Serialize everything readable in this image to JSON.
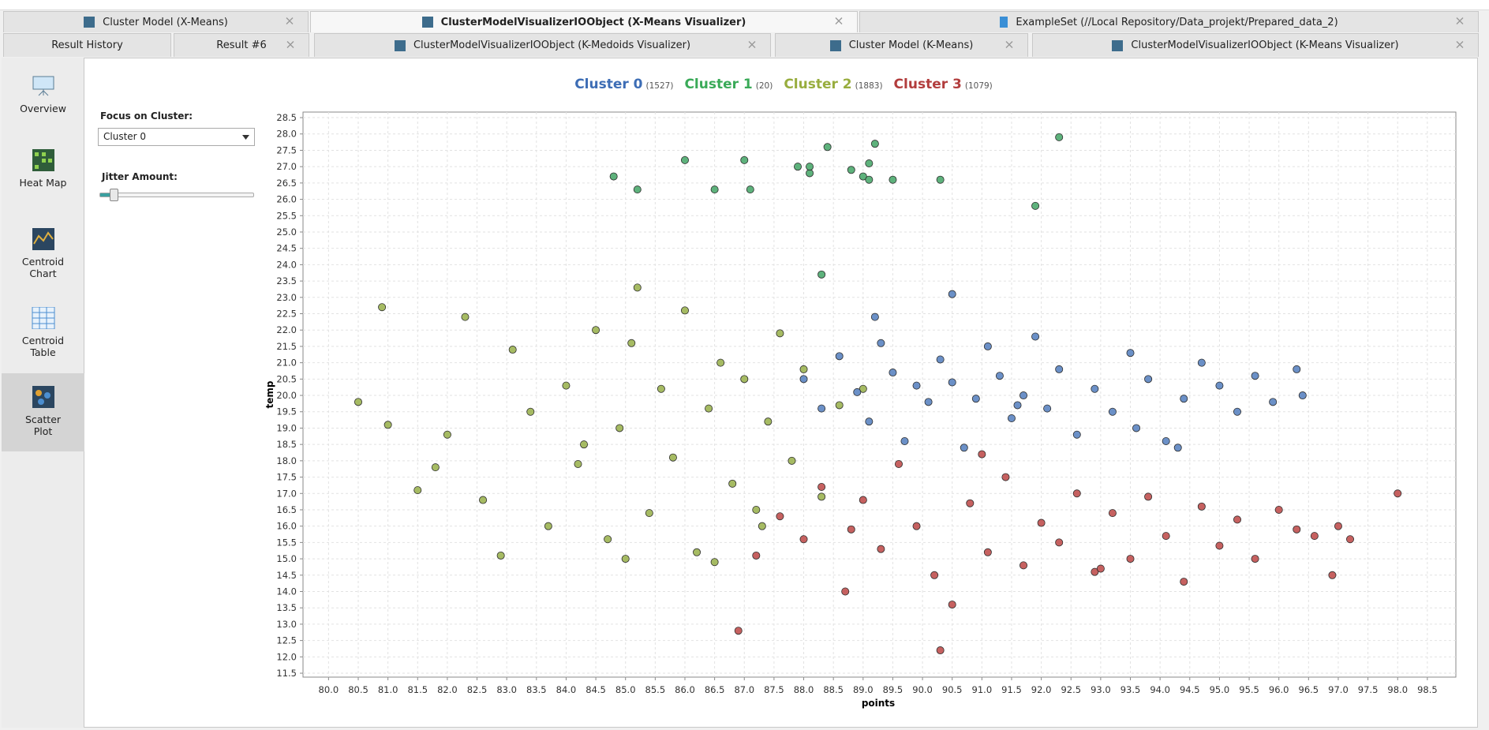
{
  "tabs_row1": [
    "Cluster Model (X-Means)",
    "ClusterModelVisualizerIOObject (X-Means Visualizer)",
    "ExampleSet (//Local Repository/Data_projekt/Prepared_data_2)"
  ],
  "tabs_row2": [
    "Result History",
    "Result #6",
    "ClusterModelVisualizerIOObject (K-Medoids Visualizer)",
    "Cluster Model (K-Means)",
    "ClusterModelVisualizerIOObject (K-Means Visualizer)"
  ],
  "sidebar": [
    "Overview",
    "Heat Map",
    "Centroid Chart",
    "Centroid Table",
    "Scatter Plot"
  ],
  "controls": {
    "focus_label": "Focus on Cluster:",
    "focus_value": "Cluster 0",
    "jitter_label": "Jitter Amount:"
  },
  "chart_data": {
    "type": "scatter",
    "x_label": "points",
    "y_label": "temp",
    "grid": true,
    "xlim": [
      79.57,
      98.98
    ],
    "ylim": [
      11.38,
      28.67
    ],
    "xticks": [
      {
        "value": 80,
        "label": "80.0"
      },
      {
        "value": 80.5,
        "label": "80.5"
      },
      {
        "value": 81,
        "label": "81.0"
      },
      {
        "value": 81.5,
        "label": "81.5"
      },
      {
        "value": 82,
        "label": "82.0"
      },
      {
        "value": 82.5,
        "label": "82.5"
      },
      {
        "value": 83,
        "label": "83.0"
      },
      {
        "value": 83.5,
        "label": "83.5"
      },
      {
        "value": 84,
        "label": "84.0"
      },
      {
        "value": 84.5,
        "label": "84.5"
      },
      {
        "value": 85,
        "label": "85.0"
      },
      {
        "value": 85.5,
        "label": "85.5"
      },
      {
        "value": 86,
        "label": "86.0"
      },
      {
        "value": 86.5,
        "label": "86.5"
      },
      {
        "value": 87,
        "label": "87.0"
      },
      {
        "value": 87.5,
        "label": "87.5"
      },
      {
        "value": 88,
        "label": "88.0"
      },
      {
        "value": 88.5,
        "label": "88.5"
      },
      {
        "value": 89,
        "label": "89.0"
      },
      {
        "value": 89.5,
        "label": "89.5"
      },
      {
        "value": 90,
        "label": "90.0"
      },
      {
        "value": 90.5,
        "label": "90.5"
      },
      {
        "value": 91,
        "label": "91.0"
      },
      {
        "value": 91.5,
        "label": "91.5"
      },
      {
        "value": 92,
        "label": "92.0"
      },
      {
        "value": 92.5,
        "label": "92.5"
      },
      {
        "value": 93,
        "label": "93.0"
      },
      {
        "value": 93.5,
        "label": "93.5"
      },
      {
        "value": 94,
        "label": "94.0"
      },
      {
        "value": 94.5,
        "label": "94.5"
      },
      {
        "value": 95,
        "label": "95.0"
      },
      {
        "value": 95.5,
        "label": "95.5"
      },
      {
        "value": 96,
        "label": "96.0"
      },
      {
        "value": 96.5,
        "label": "96.5"
      },
      {
        "value": 97,
        "label": "97.0"
      },
      {
        "value": 97.5,
        "label": "97.5"
      },
      {
        "value": 98,
        "label": "98.0"
      },
      {
        "value": 98.5,
        "label": "98.5"
      }
    ],
    "yticks": [
      {
        "value": 11.5,
        "label": "11.5"
      },
      {
        "value": 12,
        "label": "12.0"
      },
      {
        "value": 12.5,
        "label": "12.5"
      },
      {
        "value": 13,
        "label": "13.0"
      },
      {
        "value": 13.5,
        "label": "13.5"
      },
      {
        "value": 14,
        "label": "14.0"
      },
      {
        "value": 14.5,
        "label": "14.5"
      },
      {
        "value": 15,
        "label": "15.0"
      },
      {
        "value": 15.5,
        "label": "15.5"
      },
      {
        "value": 16,
        "label": "16.0"
      },
      {
        "value": 16.5,
        "label": "16.5"
      },
      {
        "value": 17,
        "label": "17.0"
      },
      {
        "value": 17.5,
        "label": "17.5"
      },
      {
        "value": 18,
        "label": "18.0"
      },
      {
        "value": 18.5,
        "label": "18.5"
      },
      {
        "value": 19,
        "label": "19.0"
      },
      {
        "value": 19.5,
        "label": "19.5"
      },
      {
        "value": 20,
        "label": "20.0"
      },
      {
        "value": 20.5,
        "label": "20.5"
      },
      {
        "value": 21,
        "label": "21.0"
      },
      {
        "value": 21.5,
        "label": "21.5"
      },
      {
        "value": 22,
        "label": "22.0"
      },
      {
        "value": 22.5,
        "label": "22.5"
      },
      {
        "value": 23,
        "label": "23.0"
      },
      {
        "value": 23.5,
        "label": "23.5"
      },
      {
        "value": 24,
        "label": "24.0"
      },
      {
        "value": 24.5,
        "label": "24.5"
      },
      {
        "value": 25,
        "label": "25.0"
      },
      {
        "value": 25.5,
        "label": "25.5"
      },
      {
        "value": 26,
        "label": "26.0"
      },
      {
        "value": 26.5,
        "label": "26.5"
      },
      {
        "value": 27,
        "label": "27.0"
      },
      {
        "value": 27.5,
        "label": "27.5"
      },
      {
        "value": 28,
        "label": "28.0"
      },
      {
        "value": 28.5,
        "label": "28.5"
      }
    ],
    "series": [
      {
        "name": "Cluster 0",
        "count_label": "(1527)",
        "color": "#5b84c1",
        "legend_color": "#3d6db5",
        "x": [
          88.0,
          88.3,
          88.6,
          88.9,
          89.1,
          89.3,
          89.5,
          89.7,
          89.9,
          90.1,
          90.3,
          90.5,
          90.7,
          90.9,
          91.1,
          91.3,
          91.5,
          91.7,
          91.9,
          92.1,
          92.3,
          92.6,
          92.9,
          93.2,
          93.5,
          93.8,
          94.1,
          94.4,
          94.7,
          95.0,
          95.3,
          95.6,
          95.9,
          96.3,
          96.4,
          90.5,
          89.2,
          91.6,
          93.6,
          94.3
        ],
        "y": [
          20.5,
          19.6,
          21.2,
          20.1,
          19.2,
          21.6,
          20.7,
          18.6,
          20.3,
          19.8,
          21.1,
          20.4,
          18.4,
          19.9,
          21.5,
          20.6,
          19.3,
          20.0,
          21.8,
          19.6,
          20.8,
          18.8,
          20.2,
          19.5,
          21.3,
          20.5,
          18.6,
          19.9,
          21.0,
          20.3,
          19.5,
          20.6,
          19.8,
          20.8,
          20.0,
          23.1,
          22.4,
          19.7,
          19.0,
          18.4
        ]
      },
      {
        "name": "Cluster 1",
        "count_label": "(20)",
        "color": "#4daa6e",
        "legend_color": "#3aaa58",
        "x": [
          84.8,
          85.2,
          86.0,
          86.5,
          87.0,
          87.1,
          87.9,
          88.1,
          88.1,
          88.4,
          88.8,
          89.0,
          89.1,
          89.1,
          89.2,
          89.5,
          90.3,
          91.9,
          92.3,
          88.3
        ],
        "y": [
          26.7,
          26.3,
          27.2,
          26.3,
          27.2,
          26.3,
          27.0,
          26.8,
          27.0,
          27.6,
          26.9,
          26.7,
          27.1,
          26.6,
          27.7,
          26.6,
          26.6,
          25.8,
          27.9,
          23.7
        ]
      },
      {
        "name": "Cluster 2",
        "count_label": "(1883)",
        "color": "#9cb452",
        "legend_color": "#98ad3e",
        "x": [
          80.5,
          80.9,
          81.0,
          81.5,
          81.8,
          82.0,
          82.3,
          82.6,
          82.9,
          83.1,
          83.4,
          83.7,
          84.0,
          84.2,
          84.5,
          84.7,
          84.9,
          85.1,
          85.2,
          85.4,
          85.6,
          85.8,
          86.0,
          86.2,
          86.4,
          86.6,
          86.8,
          87.0,
          87.2,
          87.4,
          87.6,
          87.8,
          88.0,
          88.3,
          88.6,
          89.0,
          85.0,
          86.5,
          87.3,
          84.3
        ],
        "y": [
          19.8,
          22.7,
          19.1,
          17.1,
          17.8,
          18.8,
          22.4,
          16.8,
          15.1,
          21.4,
          19.5,
          16.0,
          20.3,
          17.9,
          22.0,
          15.6,
          19.0,
          21.6,
          23.3,
          16.4,
          20.2,
          18.1,
          22.6,
          15.2,
          19.6,
          21.0,
          17.3,
          20.5,
          16.5,
          19.2,
          21.9,
          18.0,
          20.8,
          16.9,
          19.7,
          20.2,
          15.0,
          14.9,
          16.0,
          18.5
        ]
      },
      {
        "name": "Cluster 3",
        "count_label": "(1079)",
        "color": "#c0504f",
        "legend_color": "#b23d3d",
        "x": [
          86.9,
          87.2,
          87.6,
          88.0,
          88.3,
          88.7,
          89.0,
          89.3,
          89.6,
          89.9,
          90.2,
          90.3,
          90.5,
          90.8,
          91.1,
          91.4,
          91.7,
          92.0,
          92.3,
          92.6,
          92.9,
          93.2,
          93.5,
          93.8,
          94.1,
          94.4,
          94.7,
          95.0,
          95.3,
          95.6,
          96.0,
          96.3,
          96.6,
          96.9,
          97.0,
          97.2,
          98.0,
          88.8,
          91.0,
          93.0
        ],
        "y": [
          12.8,
          15.1,
          16.3,
          15.6,
          17.2,
          14.0,
          16.8,
          15.3,
          17.9,
          16.0,
          14.5,
          12.2,
          13.6,
          16.7,
          15.2,
          17.5,
          14.8,
          16.1,
          15.5,
          17.0,
          14.6,
          16.4,
          15.0,
          16.9,
          15.7,
          14.3,
          16.6,
          15.4,
          16.2,
          15.0,
          16.5,
          15.9,
          15.7,
          14.5,
          16.0,
          15.6,
          17.0,
          15.9,
          18.2,
          14.7
        ]
      }
    ]
  }
}
